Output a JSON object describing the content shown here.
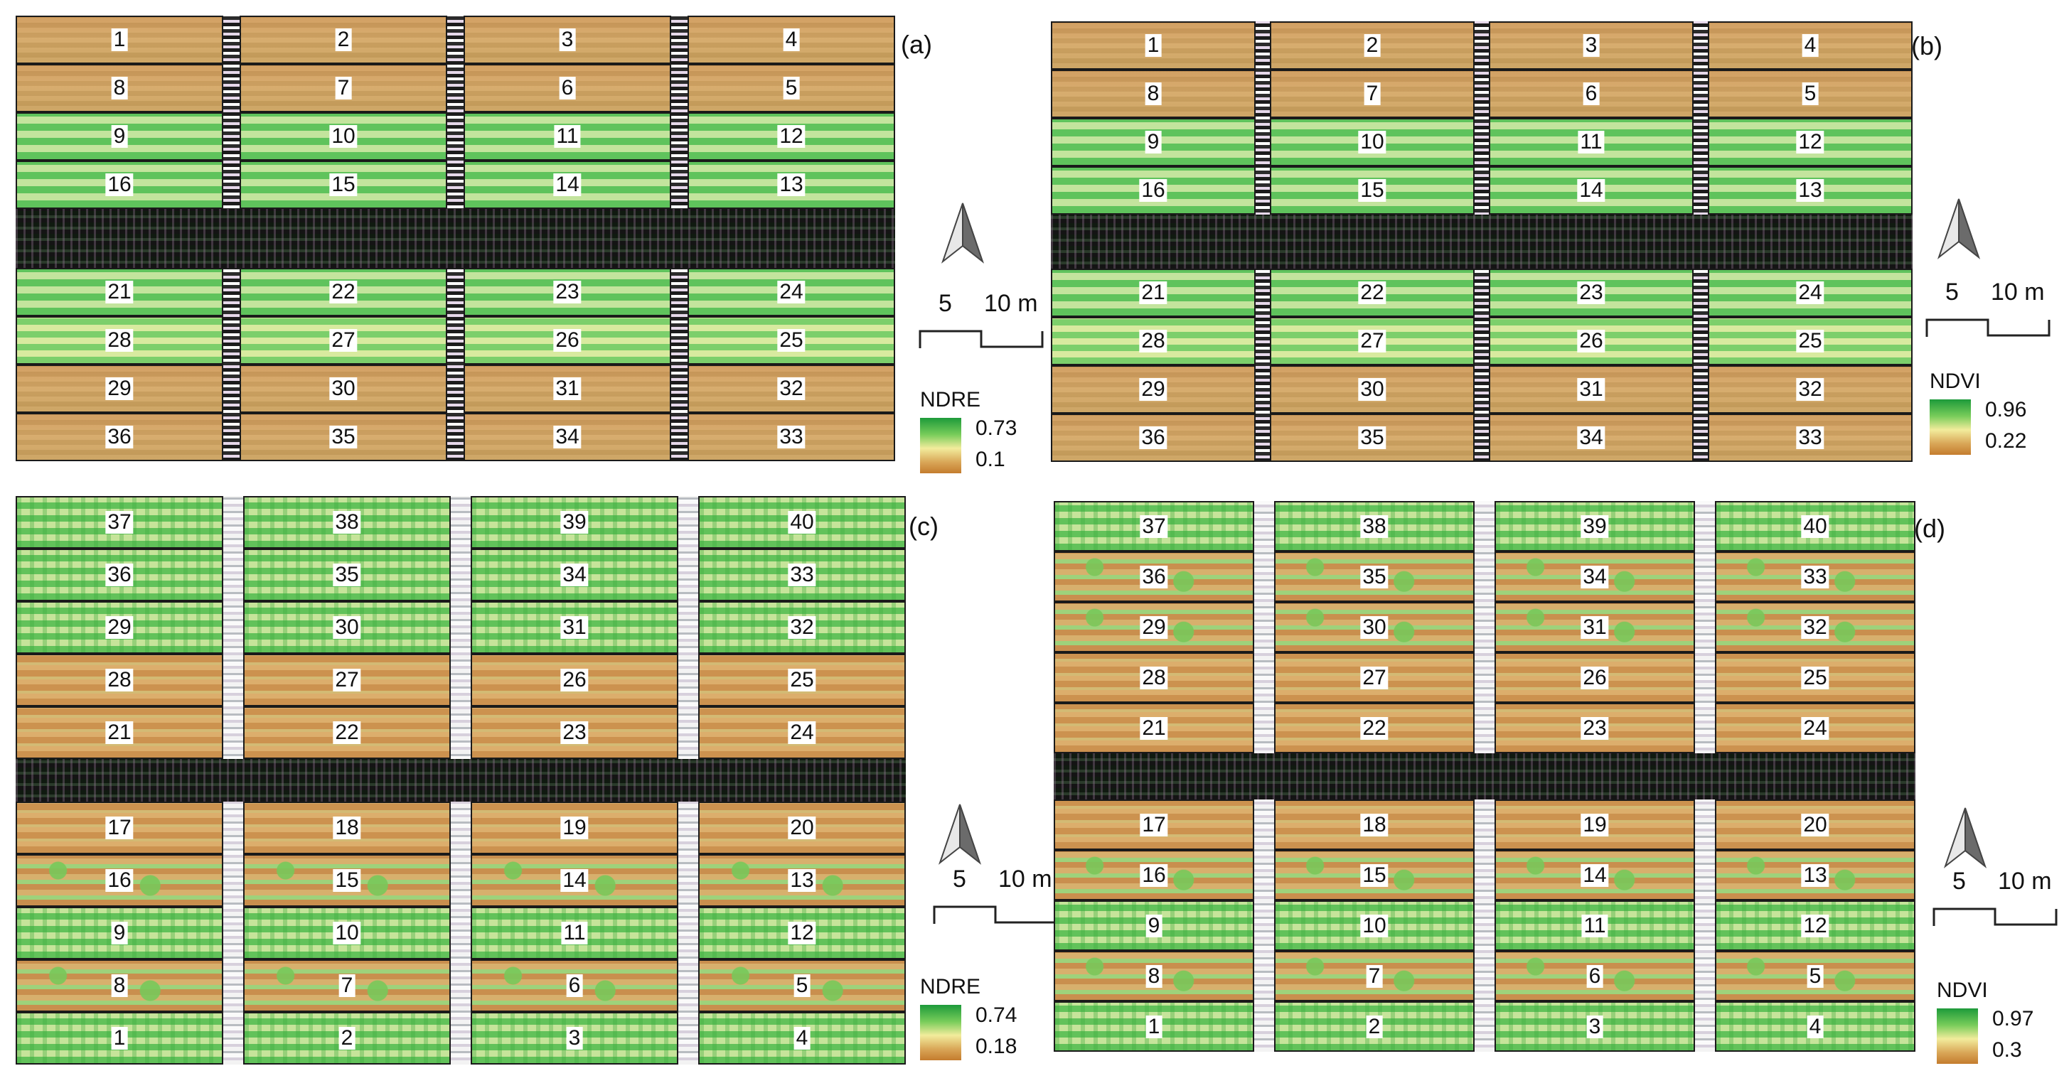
{
  "colors": {
    "ramp_high": "#1d9a3a",
    "ramp_mid": "#f2ec9c",
    "ramp_low": "#c47c2e",
    "plot_border": "#1a1a1a"
  },
  "panels": {
    "a": {
      "tag": "(a)",
      "rows_top": [
        [
          "1",
          "2",
          "3",
          "4"
        ],
        [
          "8",
          "7",
          "6",
          "5"
        ],
        [
          "9",
          "10",
          "11",
          "12"
        ],
        [
          "16",
          "15",
          "14",
          "13"
        ]
      ],
      "rows_bottom": [
        [
          "21",
          "22",
          "23",
          "24"
        ],
        [
          "28",
          "27",
          "26",
          "25"
        ],
        [
          "29",
          "30",
          "31",
          "32"
        ],
        [
          "36",
          "35",
          "34",
          "33"
        ]
      ],
      "scale": {
        "mid": "5",
        "end": "10 m"
      },
      "legend": {
        "index": "NDRE",
        "max": "0.73",
        "min": "0.1"
      },
      "north_icon": "north-arrow-icon"
    },
    "b": {
      "tag": "(b)",
      "rows_top": [
        [
          "1",
          "2",
          "3",
          "4"
        ],
        [
          "8",
          "7",
          "6",
          "5"
        ],
        [
          "9",
          "10",
          "11",
          "12"
        ],
        [
          "16",
          "15",
          "14",
          "13"
        ]
      ],
      "rows_bottom": [
        [
          "21",
          "22",
          "23",
          "24"
        ],
        [
          "28",
          "27",
          "26",
          "25"
        ],
        [
          "29",
          "30",
          "31",
          "32"
        ],
        [
          "36",
          "35",
          "34",
          "33"
        ]
      ],
      "scale": {
        "mid": "5",
        "end": "10 m"
      },
      "legend": {
        "index": "NDVI",
        "max": "0.96",
        "min": "0.22"
      },
      "north_icon": "north-arrow-icon"
    },
    "c": {
      "tag": "(c)",
      "rows_top": [
        [
          "37",
          "38",
          "39",
          "40"
        ],
        [
          "36",
          "35",
          "34",
          "33"
        ],
        [
          "29",
          "30",
          "31",
          "32"
        ],
        [
          "28",
          "27",
          "26",
          "25"
        ],
        [
          "21",
          "22",
          "23",
          "24"
        ]
      ],
      "rows_bottom": [
        [
          "17",
          "18",
          "19",
          "20"
        ],
        [
          "16",
          "15",
          "14",
          "13"
        ],
        [
          "9",
          "10",
          "11",
          "12"
        ],
        [
          "8",
          "7",
          "6",
          "5"
        ],
        [
          "1",
          "2",
          "3",
          "4"
        ]
      ],
      "scale": {
        "mid": "5",
        "end": "10 m"
      },
      "legend": {
        "index": "NDRE",
        "max": "0.74",
        "min": "0.18"
      },
      "north_icon": "north-arrow-icon"
    },
    "d": {
      "tag": "(d)",
      "rows_top": [
        [
          "37",
          "38",
          "39",
          "40"
        ],
        [
          "36",
          "35",
          "34",
          "33"
        ],
        [
          "29",
          "30",
          "31",
          "32"
        ],
        [
          "28",
          "27",
          "26",
          "25"
        ],
        [
          "21",
          "22",
          "23",
          "24"
        ]
      ],
      "rows_bottom": [
        [
          "17",
          "18",
          "19",
          "20"
        ],
        [
          "16",
          "15",
          "14",
          "13"
        ],
        [
          "9",
          "10",
          "11",
          "12"
        ],
        [
          "8",
          "7",
          "6",
          "5"
        ],
        [
          "1",
          "2",
          "3",
          "4"
        ]
      ],
      "scale": {
        "mid": "5",
        "end": "10 m"
      },
      "legend": {
        "index": "NDVI",
        "max": "0.97",
        "min": "0.3"
      },
      "north_icon": "north-arrow-icon"
    }
  }
}
